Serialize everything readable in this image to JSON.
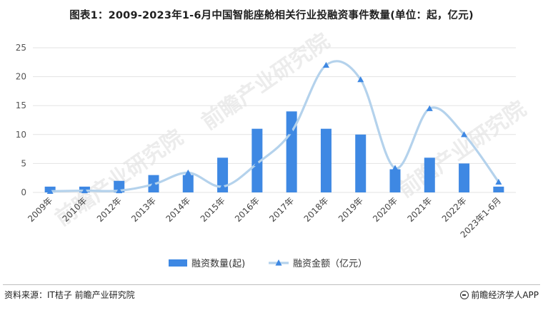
{
  "header": {
    "title": "图表1：2009-2023年1-6月中国智能座舱相关行业投融资事件数量(单位：起，亿元)"
  },
  "footer": {
    "source": "资料来源：IT桔子 前瞻产业研究院",
    "brand": "前瞻经济学人APP"
  },
  "watermark": {
    "text": "前瞻产业研究院"
  },
  "colors": {
    "bar": "#3E88E3",
    "line": "#B4D2EC",
    "marker": "#3E88E3",
    "grid": "#E3E3E3"
  },
  "chart_data": {
    "type": "bar",
    "categories": [
      "2009年",
      "2010年",
      "2012年",
      "2013年",
      "2014年",
      "2015年",
      "2016年",
      "2017年",
      "2018年",
      "2019年",
      "2020年",
      "2021年",
      "2022年",
      "2023年1-6月"
    ],
    "series": [
      {
        "name": "融资数量(起)",
        "type": "bar",
        "values": [
          1,
          1,
          2,
          3,
          3,
          6,
          11,
          14,
          11,
          10,
          4,
          6,
          5,
          1
        ]
      },
      {
        "name": "融资金额（亿元）",
        "type": "line",
        "smooth": true,
        "marker": "triangle",
        "values": [
          0.2,
          0.3,
          0.3,
          1.4,
          3.4,
          1.0,
          5.0,
          10.5,
          22.0,
          19.5,
          4.2,
          14.5,
          10.0,
          1.8
        ]
      }
    ],
    "ylim": [
      0,
      25
    ],
    "yticks": [
      0,
      5,
      10,
      15,
      20,
      25
    ],
    "grid": true,
    "legend": "bottom"
  }
}
